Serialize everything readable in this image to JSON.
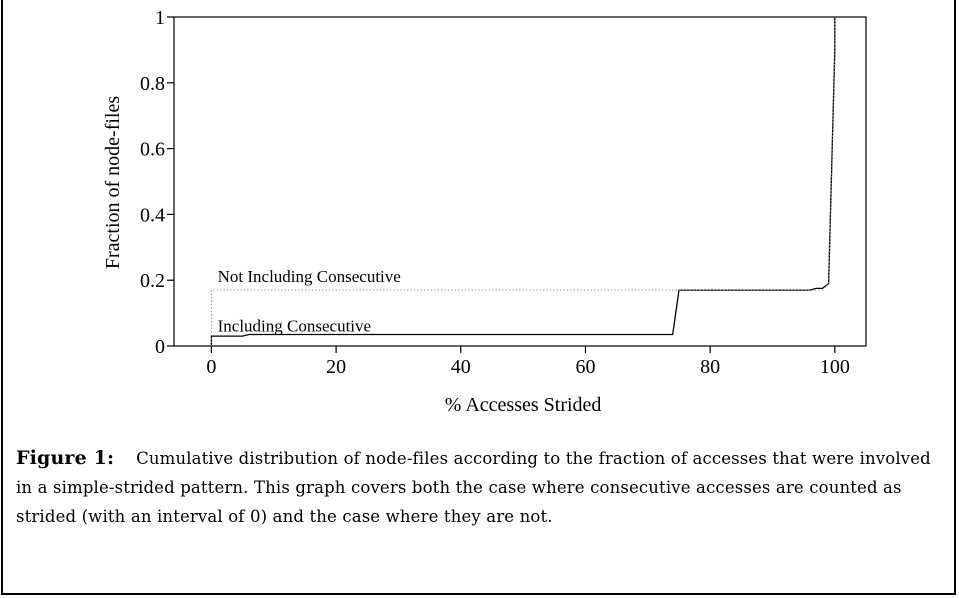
{
  "chart_data": {
    "type": "line",
    "title": "",
    "xlabel": "% Accesses Strided",
    "ylabel": "Fraction of node-files",
    "xlim": [
      -6,
      105
    ],
    "ylim": [
      0,
      1
    ],
    "xticks": [
      0,
      20,
      40,
      60,
      80,
      100
    ],
    "yticks": [
      0,
      0.2,
      0.4,
      0.6,
      0.8,
      1
    ],
    "ytick_labels": [
      "0",
      "0.2",
      "0.4",
      "0.6",
      "0.8",
      "1"
    ],
    "series": [
      {
        "name": "Including Consecutive",
        "style": "solid",
        "x": [
          0,
          0,
          5,
          6,
          74,
          75,
          96,
          97,
          98,
          99,
          100,
          100
        ],
        "y": [
          0,
          0.03,
          0.03,
          0.035,
          0.035,
          0.17,
          0.17,
          0.175,
          0.175,
          0.19,
          0.9,
          1.0
        ]
      },
      {
        "name": "Not Including Consecutive",
        "style": "dotted",
        "x": [
          0,
          0,
          74,
          75,
          98,
          99,
          100,
          100
        ],
        "y": [
          0,
          0.17,
          0.17,
          0.17,
          0.17,
          0.19,
          0.9,
          1.0
        ]
      }
    ],
    "annotations": [
      {
        "text": "Not Including Consecutive",
        "x": 1,
        "y": 0.2
      },
      {
        "text": "Including Consecutive",
        "x": 1,
        "y": 0.05
      }
    ],
    "grid": false,
    "legend": "none"
  },
  "caption": {
    "label": "Figure 1:",
    "text": "Cumulative distribution of node-files according to the fraction of accesses that were involved in a simple-strided pattern. This graph covers both the case where consecutive accesses are counted as strided (with an interval of 0) and the case where they are not."
  }
}
